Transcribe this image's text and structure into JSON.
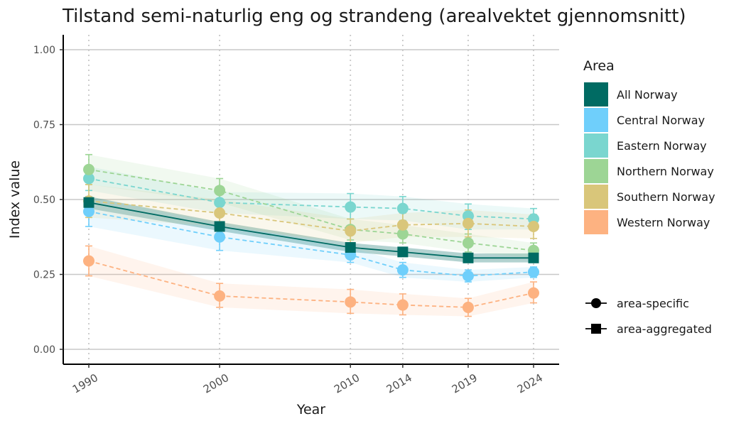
{
  "chart_data": {
    "type": "line",
    "title": "Tilstand semi-naturlig eng og strandeng (arealvektet gjennomsnitt)",
    "xlabel": "Year",
    "ylabel": "Index value",
    "x": [
      1990,
      2000,
      2010,
      2014,
      2019,
      2024
    ],
    "x_tick_labels": [
      "1990",
      "2000",
      "2010",
      "2014",
      "2019",
      "2024"
    ],
    "y_ticks": [
      0,
      0.25,
      0.5,
      0.75,
      1
    ],
    "y_tick_labels": [
      "0.00",
      "0.25",
      "0.50",
      "0.75",
      "1.00"
    ],
    "ylim": [
      -0.05,
      1.05
    ],
    "xlim": [
      1988,
      2025.5
    ],
    "legend": {
      "title": "Area",
      "position": "right",
      "shape_entries": [
        "area-specific",
        "area-aggregated"
      ]
    },
    "series": [
      {
        "name": "All Norway",
        "color": "#006B63",
        "marker": "square",
        "line": "solid",
        "values": [
          0.49,
          0.41,
          0.34,
          0.325,
          0.305,
          0.305
        ],
        "lower": [
          0.47,
          0.395,
          0.325,
          0.31,
          0.29,
          0.29
        ],
        "upper": [
          0.51,
          0.425,
          0.355,
          0.34,
          0.32,
          0.32
        ],
        "band_lower": [
          0.47,
          0.395,
          0.325,
          0.31,
          0.29,
          0.29
        ],
        "band_upper": [
          0.51,
          0.425,
          0.355,
          0.34,
          0.32,
          0.32
        ]
      },
      {
        "name": "Central Norway",
        "color": "#6FCFFB",
        "marker": "circle",
        "line": "dashed",
        "values": [
          0.46,
          0.375,
          0.315,
          0.265,
          0.245,
          0.258
        ],
        "lower": [
          0.41,
          0.33,
          0.29,
          0.24,
          0.225,
          0.24
        ],
        "upper": [
          0.51,
          0.42,
          0.34,
          0.29,
          0.265,
          0.275
        ],
        "band_lower": [
          0.41,
          0.33,
          0.29,
          0.24,
          0.225,
          0.24
        ],
        "band_upper": [
          0.51,
          0.42,
          0.34,
          0.29,
          0.265,
          0.275
        ]
      },
      {
        "name": "Eastern Norway",
        "color": "#7AD6CF",
        "marker": "circle",
        "line": "dashed",
        "values": [
          0.57,
          0.49,
          0.475,
          0.47,
          0.445,
          0.435
        ],
        "lower": [
          0.53,
          0.455,
          0.435,
          0.43,
          0.4,
          0.4
        ],
        "upper": [
          0.61,
          0.525,
          0.52,
          0.51,
          0.485,
          0.47
        ],
        "band_lower": [
          0.53,
          0.455,
          0.435,
          0.43,
          0.4,
          0.4
        ],
        "band_upper": [
          0.61,
          0.525,
          0.52,
          0.51,
          0.485,
          0.47
        ]
      },
      {
        "name": "Northern Norway",
        "color": "#9DD595",
        "marker": "circle",
        "line": "dashed",
        "values": [
          0.6,
          0.53,
          0.4,
          0.385,
          0.355,
          0.33
        ],
        "lower": [
          0.55,
          0.49,
          0.365,
          0.355,
          0.325,
          0.305
        ],
        "upper": [
          0.65,
          0.57,
          0.435,
          0.415,
          0.385,
          0.355
        ],
        "band_lower": [
          0.55,
          0.49,
          0.365,
          0.355,
          0.325,
          0.305
        ],
        "band_upper": [
          0.65,
          0.57,
          0.435,
          0.415,
          0.385,
          0.355
        ]
      },
      {
        "name": "Southern Norway",
        "color": "#D9C67A",
        "marker": "circle",
        "line": "dashed",
        "values": [
          0.495,
          0.455,
          0.395,
          0.415,
          0.42,
          0.41
        ],
        "lower": [
          0.44,
          0.41,
          0.355,
          0.375,
          0.375,
          0.37
        ],
        "upper": [
          0.55,
          0.5,
          0.435,
          0.455,
          0.465,
          0.45
        ],
        "band_lower": [
          0.44,
          0.41,
          0.355,
          0.375,
          0.375,
          0.37
        ],
        "band_upper": [
          0.55,
          0.5,
          0.435,
          0.455,
          0.465,
          0.45
        ]
      },
      {
        "name": "Western Norway",
        "color": "#FDB281",
        "marker": "circle",
        "line": "dashed",
        "values": [
          0.295,
          0.178,
          0.158,
          0.148,
          0.14,
          0.188
        ],
        "lower": [
          0.245,
          0.14,
          0.12,
          0.115,
          0.11,
          0.155
        ],
        "upper": [
          0.345,
          0.22,
          0.2,
          0.185,
          0.17,
          0.225
        ],
        "band_lower": [
          0.245,
          0.14,
          0.12,
          0.115,
          0.11,
          0.155
        ],
        "band_upper": [
          0.345,
          0.22,
          0.2,
          0.185,
          0.17,
          0.225
        ]
      }
    ]
  }
}
